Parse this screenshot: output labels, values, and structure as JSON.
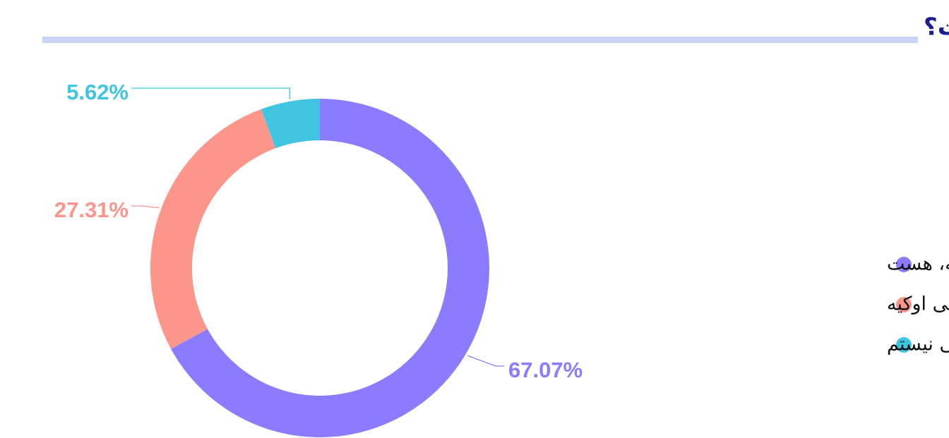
{
  "chart_data": {
    "type": "donut",
    "title": "اگه سر کار رفتی، کاری که انجام می‌دی مربوط به فیلد مورد علاقه‌ت هست؟",
    "categories": [
      "بله، هست",
      "یه فیلد دیگه است، ولی اوکیه",
      "نیست و باهاش اوکی نیستم"
    ],
    "values": [
      67.07,
      27.31,
      5.62
    ],
    "value_labels": [
      "67.07%",
      "27.31%",
      "5.62%"
    ],
    "colors": [
      "#8b7cff",
      "#fc958a",
      "#3fc5e0"
    ]
  }
}
